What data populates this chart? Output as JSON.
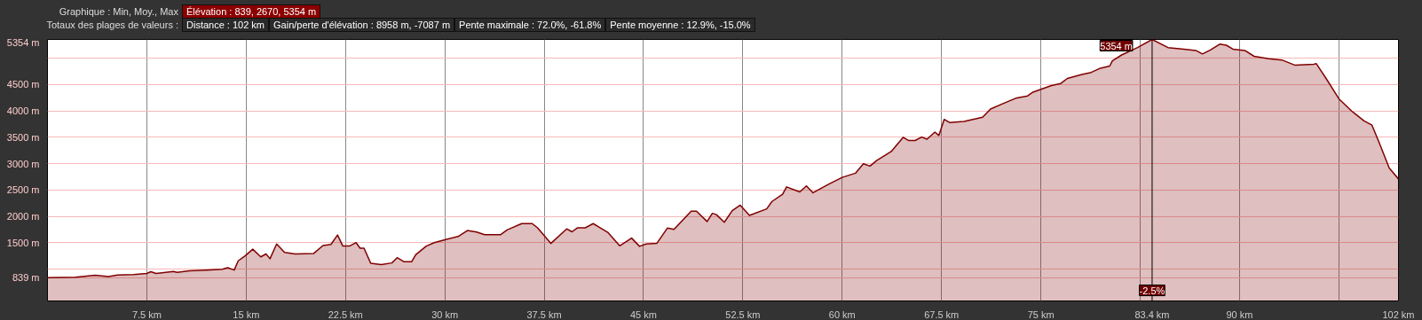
{
  "chart_data": {
    "type": "area",
    "annotations": [
      "Graphique : Min, Moy., Max",
      "Élévation : 839, 2670, 5354 m",
      "Totaux des plages de valeurs :",
      "Distance : 102 km",
      "Gain/perte d'élévation : 8958 m, -7087 m",
      "Pente maximale : 72.0%, -61.8%",
      "Pente moyenne : 12.9%, -15.0%",
      {
        "text": "5354 m",
        "x": 83.4,
        "y": 5354
      },
      {
        "text": "-2.5%",
        "x": 83.4,
        "y": 600
      }
    ],
    "series": [
      {
        "color": "#800000",
        "x": [
          0,
          2.1,
          3.6,
          4.6,
          5.3,
          6.5,
          7.5,
          7.8,
          8.2,
          9.5,
          9.8,
          10.7,
          12.0,
          13.2,
          13.6,
          14.1,
          14.4,
          14.9,
          15.5,
          16.1,
          16.5,
          16.8,
          17.3,
          17.9,
          18.7,
          20.1,
          20.8,
          21.4,
          21.9,
          22.3,
          22.8,
          23.3,
          23.6,
          23.9,
          24.4,
          25.2,
          26.0,
          26.4,
          26.9,
          27.5,
          27.8,
          28.6,
          29.2,
          30.0,
          31.0,
          31.7,
          32.4,
          33.0,
          33.6,
          34.2,
          34.7,
          35.8,
          36.6,
          37.0,
          38.0,
          39.2,
          39.6,
          40.0,
          40.6,
          41.2,
          42.3,
          43.2,
          44.1,
          44.7,
          45.2,
          46.0,
          46.8,
          47.3,
          48.6,
          49.0,
          49.8,
          50.2,
          50.5,
          51.1,
          51.7,
          52.3,
          53.0,
          54.3,
          54.7,
          55.5,
          55.8,
          56.8,
          57.3,
          57.8,
          59.0,
          60.0,
          61.0,
          61.6,
          62.1,
          62.6,
          63.7,
          64.6,
          65.0,
          65.5,
          66.0,
          66.4,
          67.0,
          67.3,
          67.7,
          68.1,
          69.2,
          70.6,
          71.2,
          72.1,
          73.1,
          74.0,
          74.4,
          75.8,
          76.5,
          77.0,
          78.1,
          78.8,
          79.5,
          80.2,
          80.4,
          81.1,
          82.3,
          83.4,
          84.6,
          85.8,
          86.7,
          87.2,
          87.8,
          88.5,
          89.0,
          89.5,
          90.4,
          91.1,
          92.2,
          93.2,
          94.2,
          95.6,
          95.8,
          96.6,
          97.5,
          98.5,
          99.4,
          100.0,
          100.6,
          101.3,
          102.0
        ],
        "values": [
          839,
          850,
          885,
          860,
          890,
          900,
          920,
          955,
          920,
          960,
          940,
          970,
          985,
          1000,
          1030,
          985,
          1160,
          1250,
          1380,
          1235,
          1290,
          1200,
          1480,
          1320,
          1290,
          1300,
          1450,
          1470,
          1650,
          1440,
          1440,
          1505,
          1400,
          1400,
          1115,
          1090,
          1120,
          1220,
          1145,
          1145,
          1275,
          1440,
          1505,
          1560,
          1620,
          1735,
          1705,
          1655,
          1655,
          1655,
          1745,
          1865,
          1865,
          1785,
          1490,
          1765,
          1710,
          1785,
          1785,
          1865,
          1700,
          1445,
          1590,
          1435,
          1480,
          1490,
          1780,
          1755,
          2100,
          2100,
          1905,
          2060,
          2035,
          1890,
          2110,
          2215,
          2020,
          2145,
          2285,
          2420,
          2560,
          2465,
          2580,
          2450,
          2615,
          2740,
          2820,
          3000,
          2955,
          3060,
          3230,
          3500,
          3440,
          3440,
          3505,
          3465,
          3600,
          3535,
          3840,
          3780,
          3800,
          3880,
          4035,
          4135,
          4240,
          4285,
          4355,
          4480,
          4520,
          4615,
          4690,
          4730,
          4810,
          4850,
          4950,
          5060,
          5200,
          5354,
          5200,
          5170,
          5145,
          5080,
          5155,
          5265,
          5245,
          5170,
          5145,
          5035,
          4990,
          4965,
          4865,
          4885,
          4895,
          4590,
          4230,
          3990,
          3810,
          3730,
          3365,
          2920,
          2710
        ]
      }
    ],
    "xlim": [
      0,
      102
    ],
    "xticks": [
      {
        "value": 7.5,
        "label": "7.5 km"
      },
      {
        "value": 15,
        "label": "15 km"
      },
      {
        "value": 22.5,
        "label": "22.5 km"
      },
      {
        "value": 30,
        "label": "30 km"
      },
      {
        "value": 37.5,
        "label": "37.5 km"
      },
      {
        "value": 45,
        "label": "45 km"
      },
      {
        "value": 52.5,
        "label": "52.5 km"
      },
      {
        "value": 60,
        "label": "60 km"
      },
      {
        "value": 67.5,
        "label": "67.5 km"
      },
      {
        "value": 75,
        "label": "75 km"
      },
      {
        "value": 82.5,
        "label": null
      },
      {
        "value": 90,
        "label": "90 km"
      },
      {
        "value": 97.5,
        "label": null
      },
      {
        "value": 102,
        "label": "102 km"
      }
    ],
    "ylim": [
      400,
      5354
    ],
    "yticks": [
      {
        "value": 839,
        "label": "839 m"
      },
      {
        "value": 1000,
        "label": null
      },
      {
        "value": 1500,
        "label": "1500 m"
      },
      {
        "value": 2000,
        "label": "2000 m"
      },
      {
        "value": 2500,
        "label": "2500 m"
      },
      {
        "value": 3000,
        "label": "3000 m"
      },
      {
        "value": 3500,
        "label": "3500 m"
      },
      {
        "value": 4000,
        "label": "4000 m"
      },
      {
        "value": 4500,
        "label": "4500 m"
      },
      {
        "value": 5000,
        "label": null
      },
      {
        "value": 5354,
        "label": "5354 m"
      }
    ],
    "ref_lines": [
      {
        "axis": "x",
        "value": 83.4,
        "label": "83.4 km",
        "color": "#000000"
      }
    ],
    "grid": true,
    "marker": "none",
    "line_style": "solid"
  }
}
